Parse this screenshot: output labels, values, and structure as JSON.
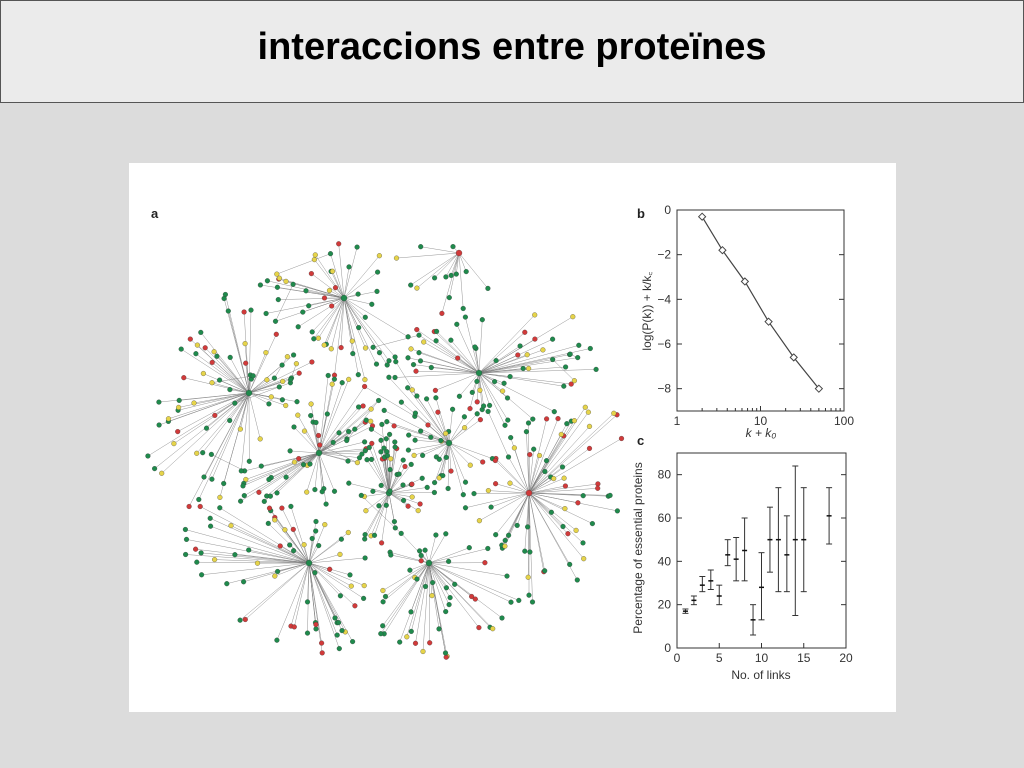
{
  "slide": {
    "title": "interaccions entre proteïnes"
  },
  "colors": {
    "background": "#dcdcdc",
    "title_bar": "#ebebeb",
    "node_green": "#1f8a4c",
    "node_red": "#d13a3a",
    "node_yellow": "#e6d44a",
    "edge": "#7a7a7a"
  },
  "network_panel": {
    "letter": "a",
    "node_colors": [
      "green",
      "red",
      "yellow"
    ]
  },
  "chart_data": [
    {
      "panel": "b",
      "type": "line",
      "x_scale": "log",
      "x": [
        2,
        3.5,
        6.5,
        12.5,
        25,
        50
      ],
      "y": [
        -0.3,
        -1.8,
        -3.2,
        -5.0,
        -6.6,
        -8.0
      ],
      "xlim": [
        1,
        100
      ],
      "ylim": [
        -9,
        0
      ],
      "x_ticks": [
        1,
        10,
        100
      ],
      "y_ticks": [
        0,
        -2,
        -4,
        -6,
        -8
      ],
      "xlabel": "k + k₀",
      "ylabel": "log(P(k)) + k/k꜀",
      "marker": "diamond",
      "grid": false
    },
    {
      "panel": "c",
      "type": "scatter",
      "error_bars": true,
      "points": [
        {
          "x": 1,
          "y": 17,
          "lo": 16,
          "hi": 18
        },
        {
          "x": 2,
          "y": 22,
          "lo": 20,
          "hi": 24
        },
        {
          "x": 3,
          "y": 29,
          "lo": 26,
          "hi": 33
        },
        {
          "x": 4,
          "y": 31,
          "lo": 27,
          "hi": 36
        },
        {
          "x": 5,
          "y": 24,
          "lo": 20,
          "hi": 29
        },
        {
          "x": 6,
          "y": 43,
          "lo": 38,
          "hi": 50
        },
        {
          "x": 7,
          "y": 41,
          "lo": 31,
          "hi": 51
        },
        {
          "x": 8,
          "y": 45,
          "lo": 31,
          "hi": 60
        },
        {
          "x": 9,
          "y": 13,
          "lo": 6,
          "hi": 20
        },
        {
          "x": 10,
          "y": 28,
          "lo": 13,
          "hi": 44
        },
        {
          "x": 11,
          "y": 50,
          "lo": 35,
          "hi": 65
        },
        {
          "x": 12,
          "y": 50,
          "lo": 26,
          "hi": 74
        },
        {
          "x": 13,
          "y": 43,
          "lo": 26,
          "hi": 61
        },
        {
          "x": 14,
          "y": 50,
          "lo": 15,
          "hi": 84
        },
        {
          "x": 15,
          "y": 50,
          "lo": 26,
          "hi": 74
        },
        {
          "x": 18,
          "y": 61,
          "lo": 48,
          "hi": 74
        }
      ],
      "xlim": [
        0,
        20
      ],
      "ylim": [
        0,
        90
      ],
      "x_ticks": [
        0,
        5,
        10,
        15,
        20
      ],
      "y_ticks": [
        0,
        20,
        40,
        60,
        80
      ],
      "xlabel": "No. of links",
      "ylabel": "Percentage of essential proteins",
      "grid": false
    }
  ]
}
